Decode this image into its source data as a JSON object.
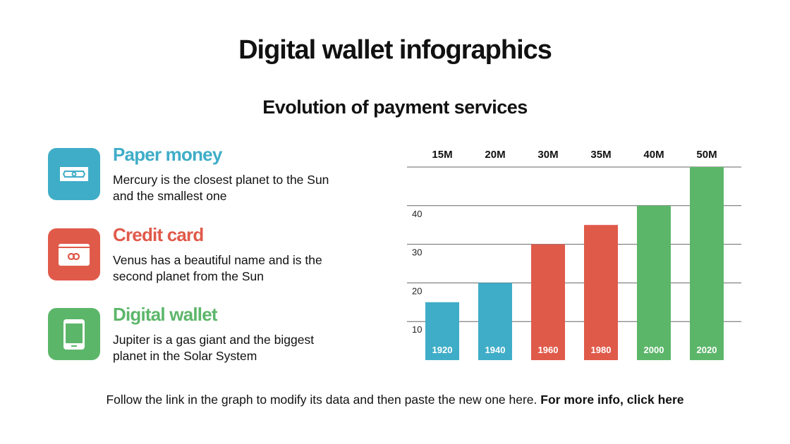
{
  "title": "Digital wallet infographics",
  "subtitle": "Evolution of payment services",
  "items": [
    {
      "title": "Paper money",
      "desc": "Mercury is the closest planet to the Sun and the smallest one",
      "color": "#3fadc8",
      "icon": "banknote-icon"
    },
    {
      "title": "Credit card",
      "desc": "Venus has a beautiful name and is the second planet from the Sun",
      "color": "#e05a4a",
      "icon": "credit-card-icon"
    },
    {
      "title": "Digital wallet",
      "desc": "Jupiter is a gas giant and the biggest planet in the Solar System",
      "color": "#5cb66a",
      "icon": "smartphone-icon"
    }
  ],
  "footer": {
    "text": "Follow the link in the graph to modify its data and then paste the new one here. ",
    "link": "For more info, click here"
  },
  "chart_data": {
    "type": "bar",
    "categories": [
      "1920",
      "1940",
      "1960",
      "1980",
      "2000",
      "2020"
    ],
    "values": [
      15,
      20,
      30,
      35,
      40,
      50
    ],
    "top_labels": [
      "15M",
      "20M",
      "30M",
      "35M",
      "40M",
      "50M"
    ],
    "colors": [
      "#3fadc8",
      "#3fadc8",
      "#e05a4a",
      "#e05a4a",
      "#5cb66a",
      "#5cb66a"
    ],
    "yticks": [
      10,
      20,
      30,
      40
    ],
    "ylim": [
      0,
      50
    ],
    "grid": true
  }
}
